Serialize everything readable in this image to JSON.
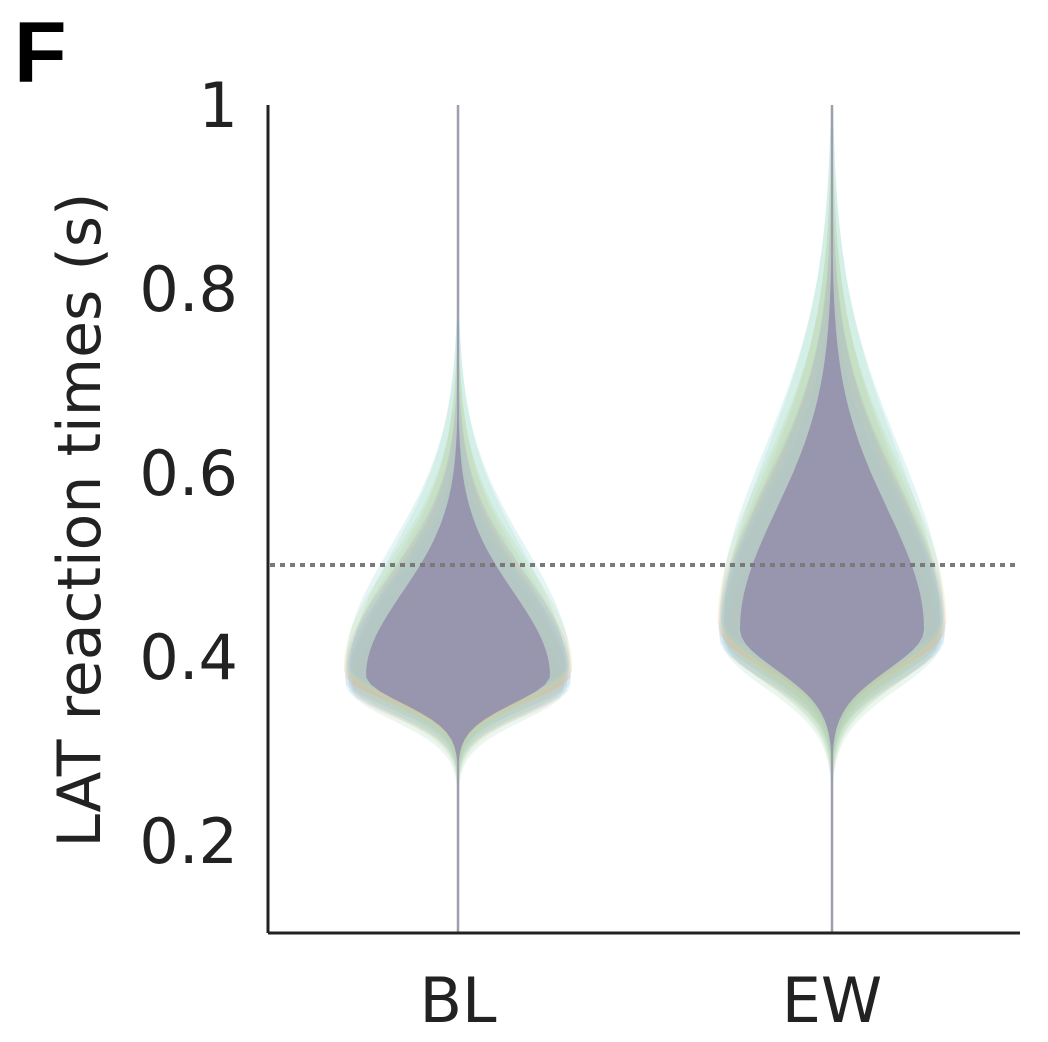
{
  "panel_label": "F",
  "chart_data": {
    "type": "violin",
    "title": "",
    "xlabel": "",
    "ylabel": "LAT reaction times (s)",
    "categories": [
      "BL",
      "EW"
    ],
    "ylim": [
      0.1,
      1.0
    ],
    "yticks": [
      0.2,
      0.4,
      0.6,
      0.8,
      1
    ],
    "ytick_labels": [
      "0.2",
      "0.4",
      "0.6",
      "0.8",
      "1"
    ],
    "reference_line": {
      "y": 0.5,
      "style": "dotted",
      "color": "#7a7a7a"
    },
    "grid": false,
    "legend": "none",
    "series": [
      {
        "category": "BL",
        "median": 0.38,
        "min": 0.1,
        "max": 1.0,
        "typical_range": [
          0.33,
          0.5
        ],
        "spread": 0.045
      },
      {
        "category": "EW",
        "median": 0.43,
        "min": 0.1,
        "max": 1.0,
        "typical_range": [
          0.36,
          0.6
        ],
        "spread": 0.065
      }
    ],
    "overlay_colors": [
      "#e8a0a8",
      "#9ed8b8",
      "#a8c8f0",
      "#d8d890",
      "#c0a8d8",
      "#88d0d0",
      "#f0c098",
      "#b8d898"
    ],
    "fill_color": "#8f84a8"
  }
}
